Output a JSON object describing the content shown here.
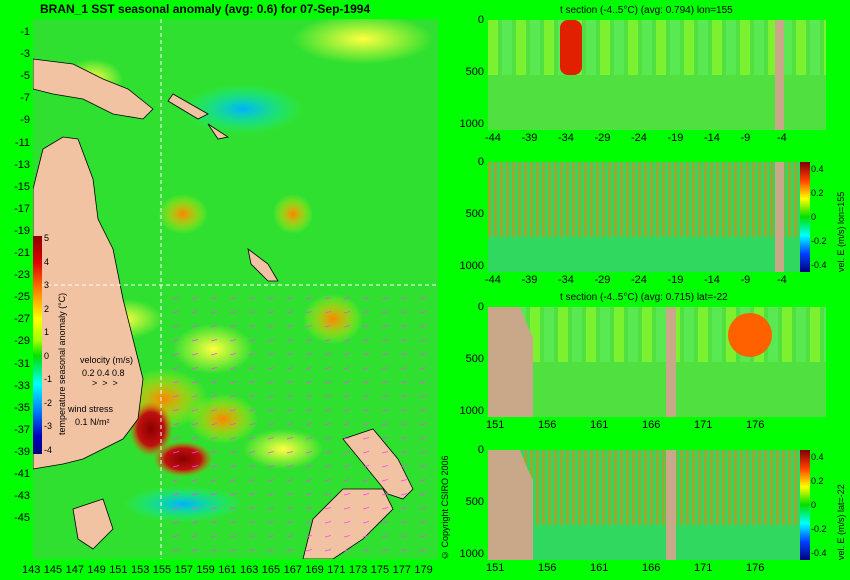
{
  "map": {
    "title": "BRAN_1 SST seasonal anomaly (avg: 0.6) for 07-Sep-1994",
    "lat_labels": [
      "-1",
      "-3",
      "-5",
      "-7",
      "-9",
      "-11",
      "-13",
      "-15",
      "-17",
      "-19",
      "-21",
      "-23",
      "-25",
      "-27",
      "-29",
      "-31",
      "-33",
      "-35",
      "-37",
      "-39",
      "-41",
      "-43",
      "-45"
    ],
    "lon_labels": [
      "143",
      "145",
      "147",
      "149",
      "151",
      "153",
      "155",
      "157",
      "159",
      "161",
      "163",
      "165",
      "167",
      "169",
      "171",
      "173",
      "175",
      "177",
      "179"
    ],
    "colorbar": {
      "ticks": [
        "5",
        "4",
        "3",
        "2",
        "1",
        "0",
        "-1",
        "-2",
        "-3",
        "-4"
      ],
      "label": "temperature seasonal anomaly (°C)",
      "range": [
        -4,
        5
      ]
    },
    "legend": {
      "velocity_label": "velocity (m/s)",
      "velocity_values": "0.2 0.4 0.8",
      "wind_label": "wind stress",
      "wind_value": "0.1 N/m²"
    },
    "copyright": "© Copyright CSIRO 2006"
  },
  "panels": [
    {
      "title": "t section (-4..5°C) (avg: 0.794) lon=155",
      "y_ticks": [
        "0",
        "500",
        "1000"
      ],
      "x_ticks": [
        "-44",
        "-39",
        "-34",
        "-29",
        "-24",
        "-19",
        "-14",
        "-9",
        "-4"
      ]
    },
    {
      "title": "",
      "y_ticks": [
        "0",
        "500",
        "1000"
      ],
      "x_ticks": [
        "-44",
        "-39",
        "-34",
        "-29",
        "-24",
        "-19",
        "-14",
        "-9",
        "-4"
      ],
      "colorbar_ticks": [
        "0.4",
        "0.2",
        "0",
        "-0.2",
        "-0.4"
      ],
      "side_label": "vel. E (m/s) lon=155"
    },
    {
      "title": "t section (-4..5°C) (avg: 0.715) lat=-22",
      "y_ticks": [
        "0",
        "500",
        "1000"
      ],
      "x_ticks": [
        "151",
        "156",
        "161",
        "166",
        "171",
        "176"
      ]
    },
    {
      "title": "",
      "y_ticks": [
        "0",
        "500",
        "1000"
      ],
      "x_ticks": [
        "151",
        "156",
        "161",
        "166",
        "171",
        "176"
      ],
      "colorbar_ticks": [
        "0.4",
        "0.2",
        "0",
        "-0.2",
        "-0.4"
      ],
      "side_label": "vel. E (m/s) lat=-22"
    }
  ]
}
